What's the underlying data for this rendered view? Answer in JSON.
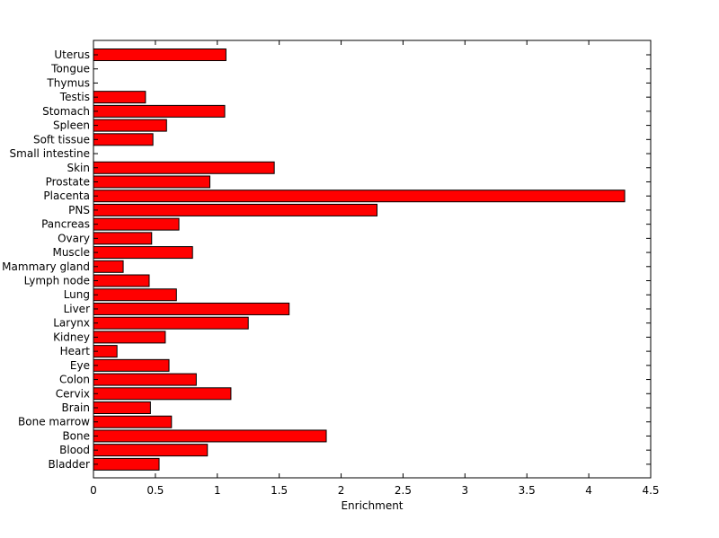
{
  "chart_data": {
    "type": "bar",
    "orientation": "horizontal",
    "title": "",
    "xlabel": "Enrichment",
    "ylabel": "",
    "xlim": [
      0,
      4.5
    ],
    "xticks": [
      "0",
      "0.5",
      "1",
      "1.5",
      "2",
      "2.5",
      "3",
      "3.5",
      "4",
      "4.5"
    ],
    "grid": false,
    "bar_color": "#ff0000",
    "edge_color": "#000000",
    "categories": [
      "Uterus",
      "Tongue",
      "Thymus",
      "Testis",
      "Stomach",
      "Spleen",
      "Soft tissue",
      "Small intestine",
      "Skin",
      "Prostate",
      "Placenta",
      "PNS",
      "Pancreas",
      "Ovary",
      "Muscle",
      "Mammary gland",
      "Lymph node",
      "Lung",
      "Liver",
      "Larynx",
      "Kidney",
      "Heart",
      "Eye",
      "Colon",
      "Cervix",
      "Brain",
      "Bone marrow",
      "Bone",
      "Blood",
      "Bladder"
    ],
    "values": [
      1.07,
      0,
      0,
      0.42,
      1.06,
      0.59,
      0.48,
      0,
      1.46,
      0.94,
      4.29,
      2.29,
      0.69,
      0.47,
      0.8,
      0.24,
      0.45,
      0.67,
      1.58,
      1.25,
      0.58,
      0.19,
      0.61,
      0.83,
      1.11,
      0.46,
      0.63,
      1.88,
      0.92,
      0.53
    ]
  }
}
